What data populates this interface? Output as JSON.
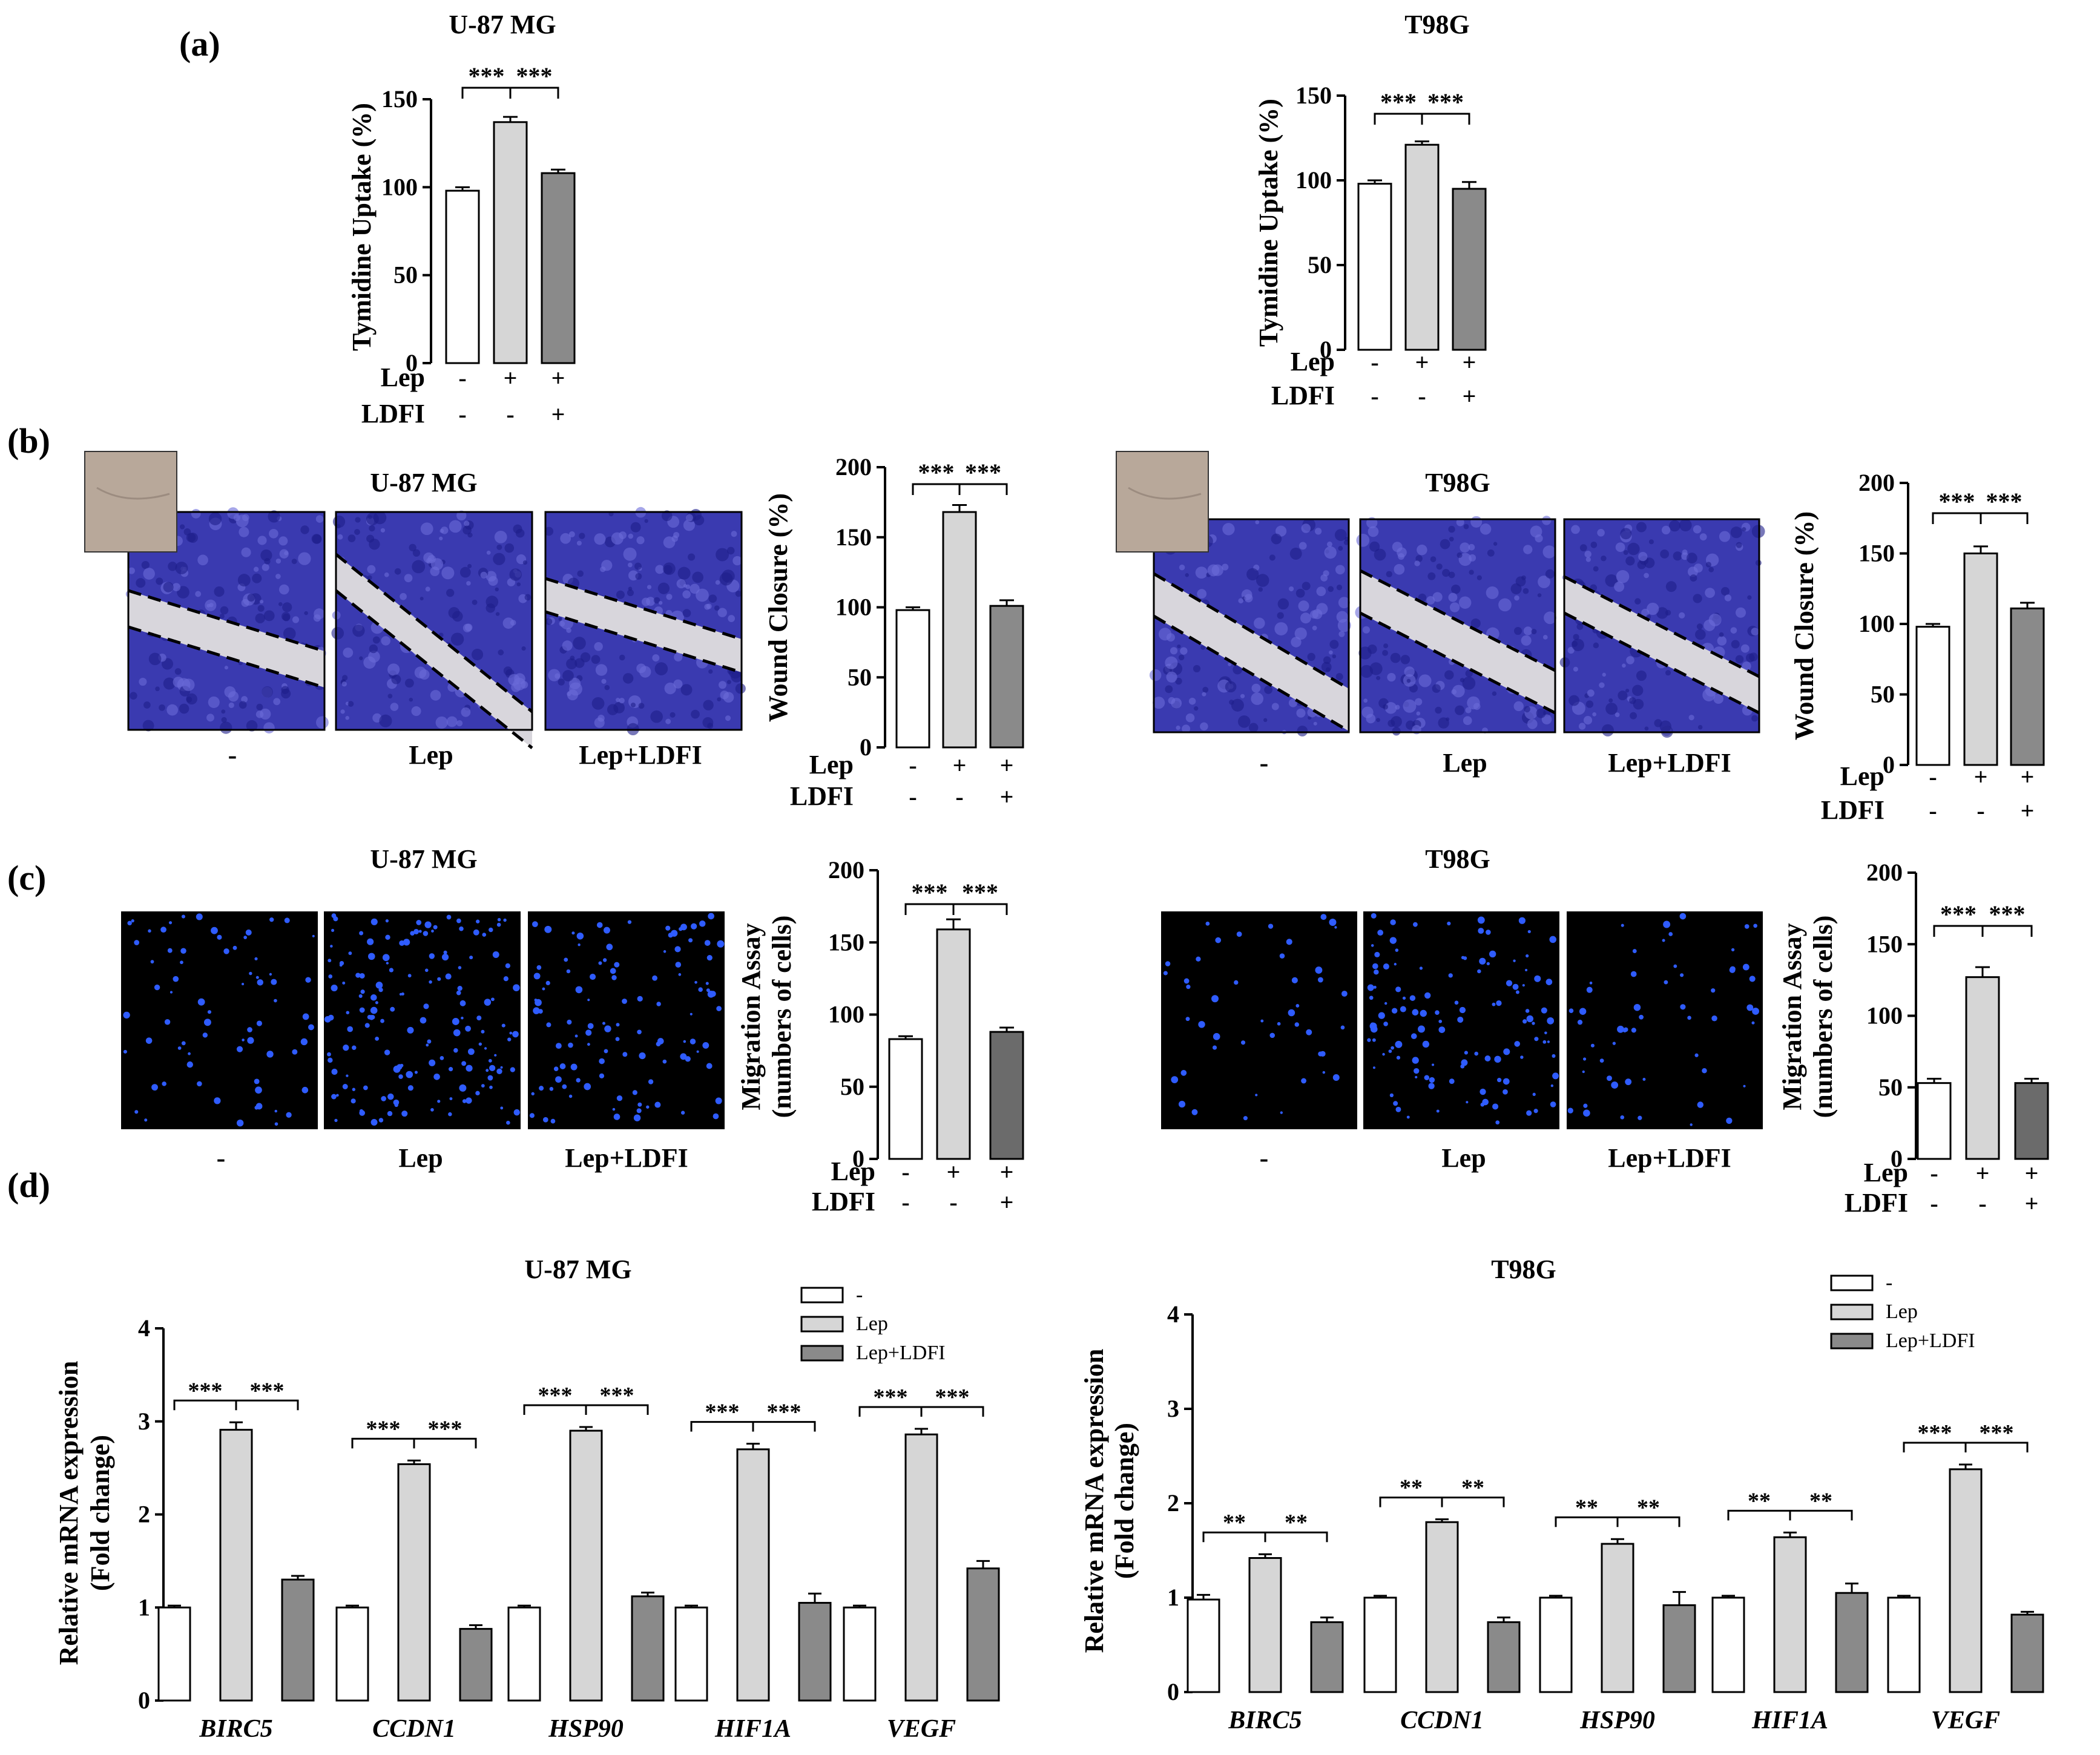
{
  "panel_labels": [
    "(a)",
    "(b)",
    "(c)",
    "(d)"
  ],
  "image_groups": [
    {
      "id": "b-u87",
      "title": "U-87 MG",
      "labels": [
        "-",
        "Lep",
        "Lep+LDFI"
      ],
      "kind": "wound"
    },
    {
      "id": "b-t98",
      "title": "T98G",
      "labels": [
        "-",
        "Lep",
        "Lep+LDFI"
      ],
      "kind": "wound"
    },
    {
      "id": "c-u87",
      "title": "U-87 MG",
      "labels": [
        "-",
        "Lep",
        "Lep+LDFI"
      ],
      "kind": "migration"
    },
    {
      "id": "c-t98",
      "title": "T98G",
      "labels": [
        "-",
        "Lep",
        "Lep+LDFI"
      ],
      "kind": "migration"
    }
  ],
  "chart_data": [
    {
      "id": "a-u87",
      "type": "bar",
      "title": "U-87 MG",
      "ylabel": [
        "Tymidine Uptake (%)"
      ],
      "ylim": [
        0,
        150
      ],
      "yticks": [
        0,
        50,
        100,
        150
      ],
      "categories": [
        "-",
        "Lep",
        "Lep+LDFI"
      ],
      "values": [
        98,
        137,
        108
      ],
      "errors": [
        2,
        3,
        2
      ],
      "treatments": [
        {
          "name": "Lep",
          "marks": [
            "-",
            "+",
            "+"
          ]
        },
        {
          "name": "LDFI",
          "marks": [
            "-",
            "-",
            "+"
          ]
        }
      ],
      "significance": [
        [
          "***",
          "***"
        ]
      ]
    },
    {
      "id": "a-t98",
      "type": "bar",
      "title": "T98G",
      "ylabel": [
        "Tymidine Uptake (%)"
      ],
      "ylim": [
        0,
        150
      ],
      "yticks": [
        0,
        50,
        100,
        150
      ],
      "categories": [
        "-",
        "Lep",
        "Lep+LDFI"
      ],
      "values": [
        98,
        121,
        95
      ],
      "errors": [
        2,
        2,
        4
      ],
      "treatments": [
        {
          "name": "Lep",
          "marks": [
            "-",
            "+",
            "+"
          ]
        },
        {
          "name": "LDFI",
          "marks": [
            "-",
            "-",
            "+"
          ]
        }
      ],
      "significance": [
        [
          "***",
          "***"
        ]
      ]
    },
    {
      "id": "b-u87",
      "type": "bar",
      "title": "",
      "ylabel": [
        "Wound Closure (%)"
      ],
      "ylim": [
        0,
        200
      ],
      "yticks": [
        0,
        50,
        100,
        150,
        200
      ],
      "categories": [
        "-",
        "Lep",
        "Lep+LDFI"
      ],
      "values": [
        98,
        168,
        101
      ],
      "errors": [
        2,
        5,
        4
      ],
      "treatments": [
        {
          "name": "Lep",
          "marks": [
            "-",
            "+",
            "+"
          ]
        },
        {
          "name": "LDFI",
          "marks": [
            "-",
            "-",
            "+"
          ]
        }
      ],
      "significance": [
        [
          "***",
          "***"
        ]
      ]
    },
    {
      "id": "b-t98",
      "type": "bar",
      "title": "",
      "ylabel": [
        "Wound Closure (%)"
      ],
      "ylim": [
        0,
        200
      ],
      "yticks": [
        0,
        50,
        100,
        150,
        200
      ],
      "categories": [
        "-",
        "Lep",
        "Lep+LDFI"
      ],
      "values": [
        98,
        150,
        111
      ],
      "errors": [
        2,
        5,
        4
      ],
      "treatments": [
        {
          "name": "Lep",
          "marks": [
            "-",
            "+",
            "+"
          ]
        },
        {
          "name": "LDFI",
          "marks": [
            "-",
            "-",
            "+"
          ]
        }
      ],
      "significance": [
        [
          "***",
          "***"
        ]
      ]
    },
    {
      "id": "c-u87",
      "type": "bar",
      "title": "",
      "ylabel": [
        "Migration Assay",
        "(numbers of cells)"
      ],
      "ylim": [
        0,
        200
      ],
      "yticks": [
        0,
        50,
        100,
        150,
        200
      ],
      "categories": [
        "-",
        "Lep",
        "Lep+LDFI"
      ],
      "values": [
        83,
        159,
        88
      ],
      "errors": [
        2,
        7,
        3
      ],
      "treatments": [
        {
          "name": "Lep",
          "marks": [
            "-",
            "+",
            "+"
          ]
        },
        {
          "name": "LDFI",
          "marks": [
            "-",
            "-",
            "+"
          ]
        }
      ],
      "significance": [
        [
          "***",
          "***"
        ]
      ]
    },
    {
      "id": "c-t98",
      "type": "bar",
      "title": "",
      "ylabel": [
        "Migration Assay",
        "(numbers of cells)"
      ],
      "ylim": [
        0,
        200
      ],
      "yticks": [
        0,
        50,
        100,
        150,
        200
      ],
      "categories": [
        "-",
        "Lep",
        "Lep+LDFI"
      ],
      "values": [
        53,
        127,
        53
      ],
      "errors": [
        3,
        7,
        3
      ],
      "treatments": [
        {
          "name": "Lep",
          "marks": [
            "-",
            "+",
            "+"
          ]
        },
        {
          "name": "LDFI",
          "marks": [
            "-",
            "-",
            "+"
          ]
        }
      ],
      "significance": [
        [
          "***",
          "***"
        ]
      ]
    },
    {
      "id": "d-u87",
      "type": "bar",
      "title": "U-87 MG",
      "ylabel": [
        "Relative mRNA expression",
        "(Fold change)"
      ],
      "ylim": [
        0,
        4
      ],
      "yticks": [
        0,
        1,
        2,
        3,
        4
      ],
      "categories": [
        "BIRC5",
        "CCDN1",
        "HSP90",
        "HIF1A",
        "VEGF"
      ],
      "series": [
        {
          "name": "-",
          "values": [
            1.0,
            1.0,
            1.0,
            1.0,
            1.0
          ],
          "errors": [
            0.02,
            0.02,
            0.02,
            0.02,
            0.02
          ]
        },
        {
          "name": "Lep",
          "values": [
            2.91,
            2.54,
            2.9,
            2.7,
            2.86
          ],
          "errors": [
            0.08,
            0.04,
            0.04,
            0.06,
            0.06
          ]
        },
        {
          "name": "Lep+LDFI",
          "values": [
            1.3,
            0.77,
            1.12,
            1.05,
            1.42
          ],
          "errors": [
            0.04,
            0.04,
            0.04,
            0.1,
            0.08
          ]
        }
      ],
      "significance": [
        [
          "***",
          "***"
        ],
        [
          "***",
          "***"
        ],
        [
          "***",
          "***"
        ],
        [
          "***",
          "***"
        ],
        [
          "***",
          "***"
        ]
      ]
    },
    {
      "id": "d-t98",
      "type": "bar",
      "title": "T98G",
      "ylabel": [
        "Relative mRNA expression",
        "(Fold change)"
      ],
      "ylim": [
        0,
        4
      ],
      "yticks": [
        0,
        1,
        2,
        3,
        4
      ],
      "categories": [
        "BIRC5",
        "CCDN1",
        "HSP90",
        "HIF1A",
        "VEGF"
      ],
      "series": [
        {
          "name": "-",
          "values": [
            0.98,
            1.0,
            1.0,
            1.0,
            1.0
          ],
          "errors": [
            0.05,
            0.02,
            0.02,
            0.02,
            0.02
          ]
        },
        {
          "name": "Lep",
          "values": [
            1.42,
            1.8,
            1.57,
            1.64,
            2.36
          ],
          "errors": [
            0.04,
            0.03,
            0.05,
            0.05,
            0.05
          ]
        },
        {
          "name": "Lep+LDFI",
          "values": [
            0.74,
            0.74,
            0.92,
            1.05,
            0.82
          ],
          "errors": [
            0.05,
            0.05,
            0.14,
            0.1,
            0.03
          ]
        }
      ],
      "significance": [
        [
          "**",
          "**"
        ],
        [
          "**",
          "**"
        ],
        [
          "**",
          "**"
        ],
        [
          "**",
          "**"
        ],
        [
          "***",
          "***"
        ]
      ]
    }
  ],
  "colors": {
    "bar_control": "#ffffff",
    "bar_lep": "#d6d6d6",
    "bar_ldfi": "#8a8a8a",
    "bar_ldfi_dark": "#6b6b6b",
    "wound_stain": "#3a3ab0",
    "wound_gap": "#d8d6dc",
    "migration_bg": "#000000",
    "migration_cell": "#2f5cff",
    "inset_photo": "#b8a89a"
  }
}
